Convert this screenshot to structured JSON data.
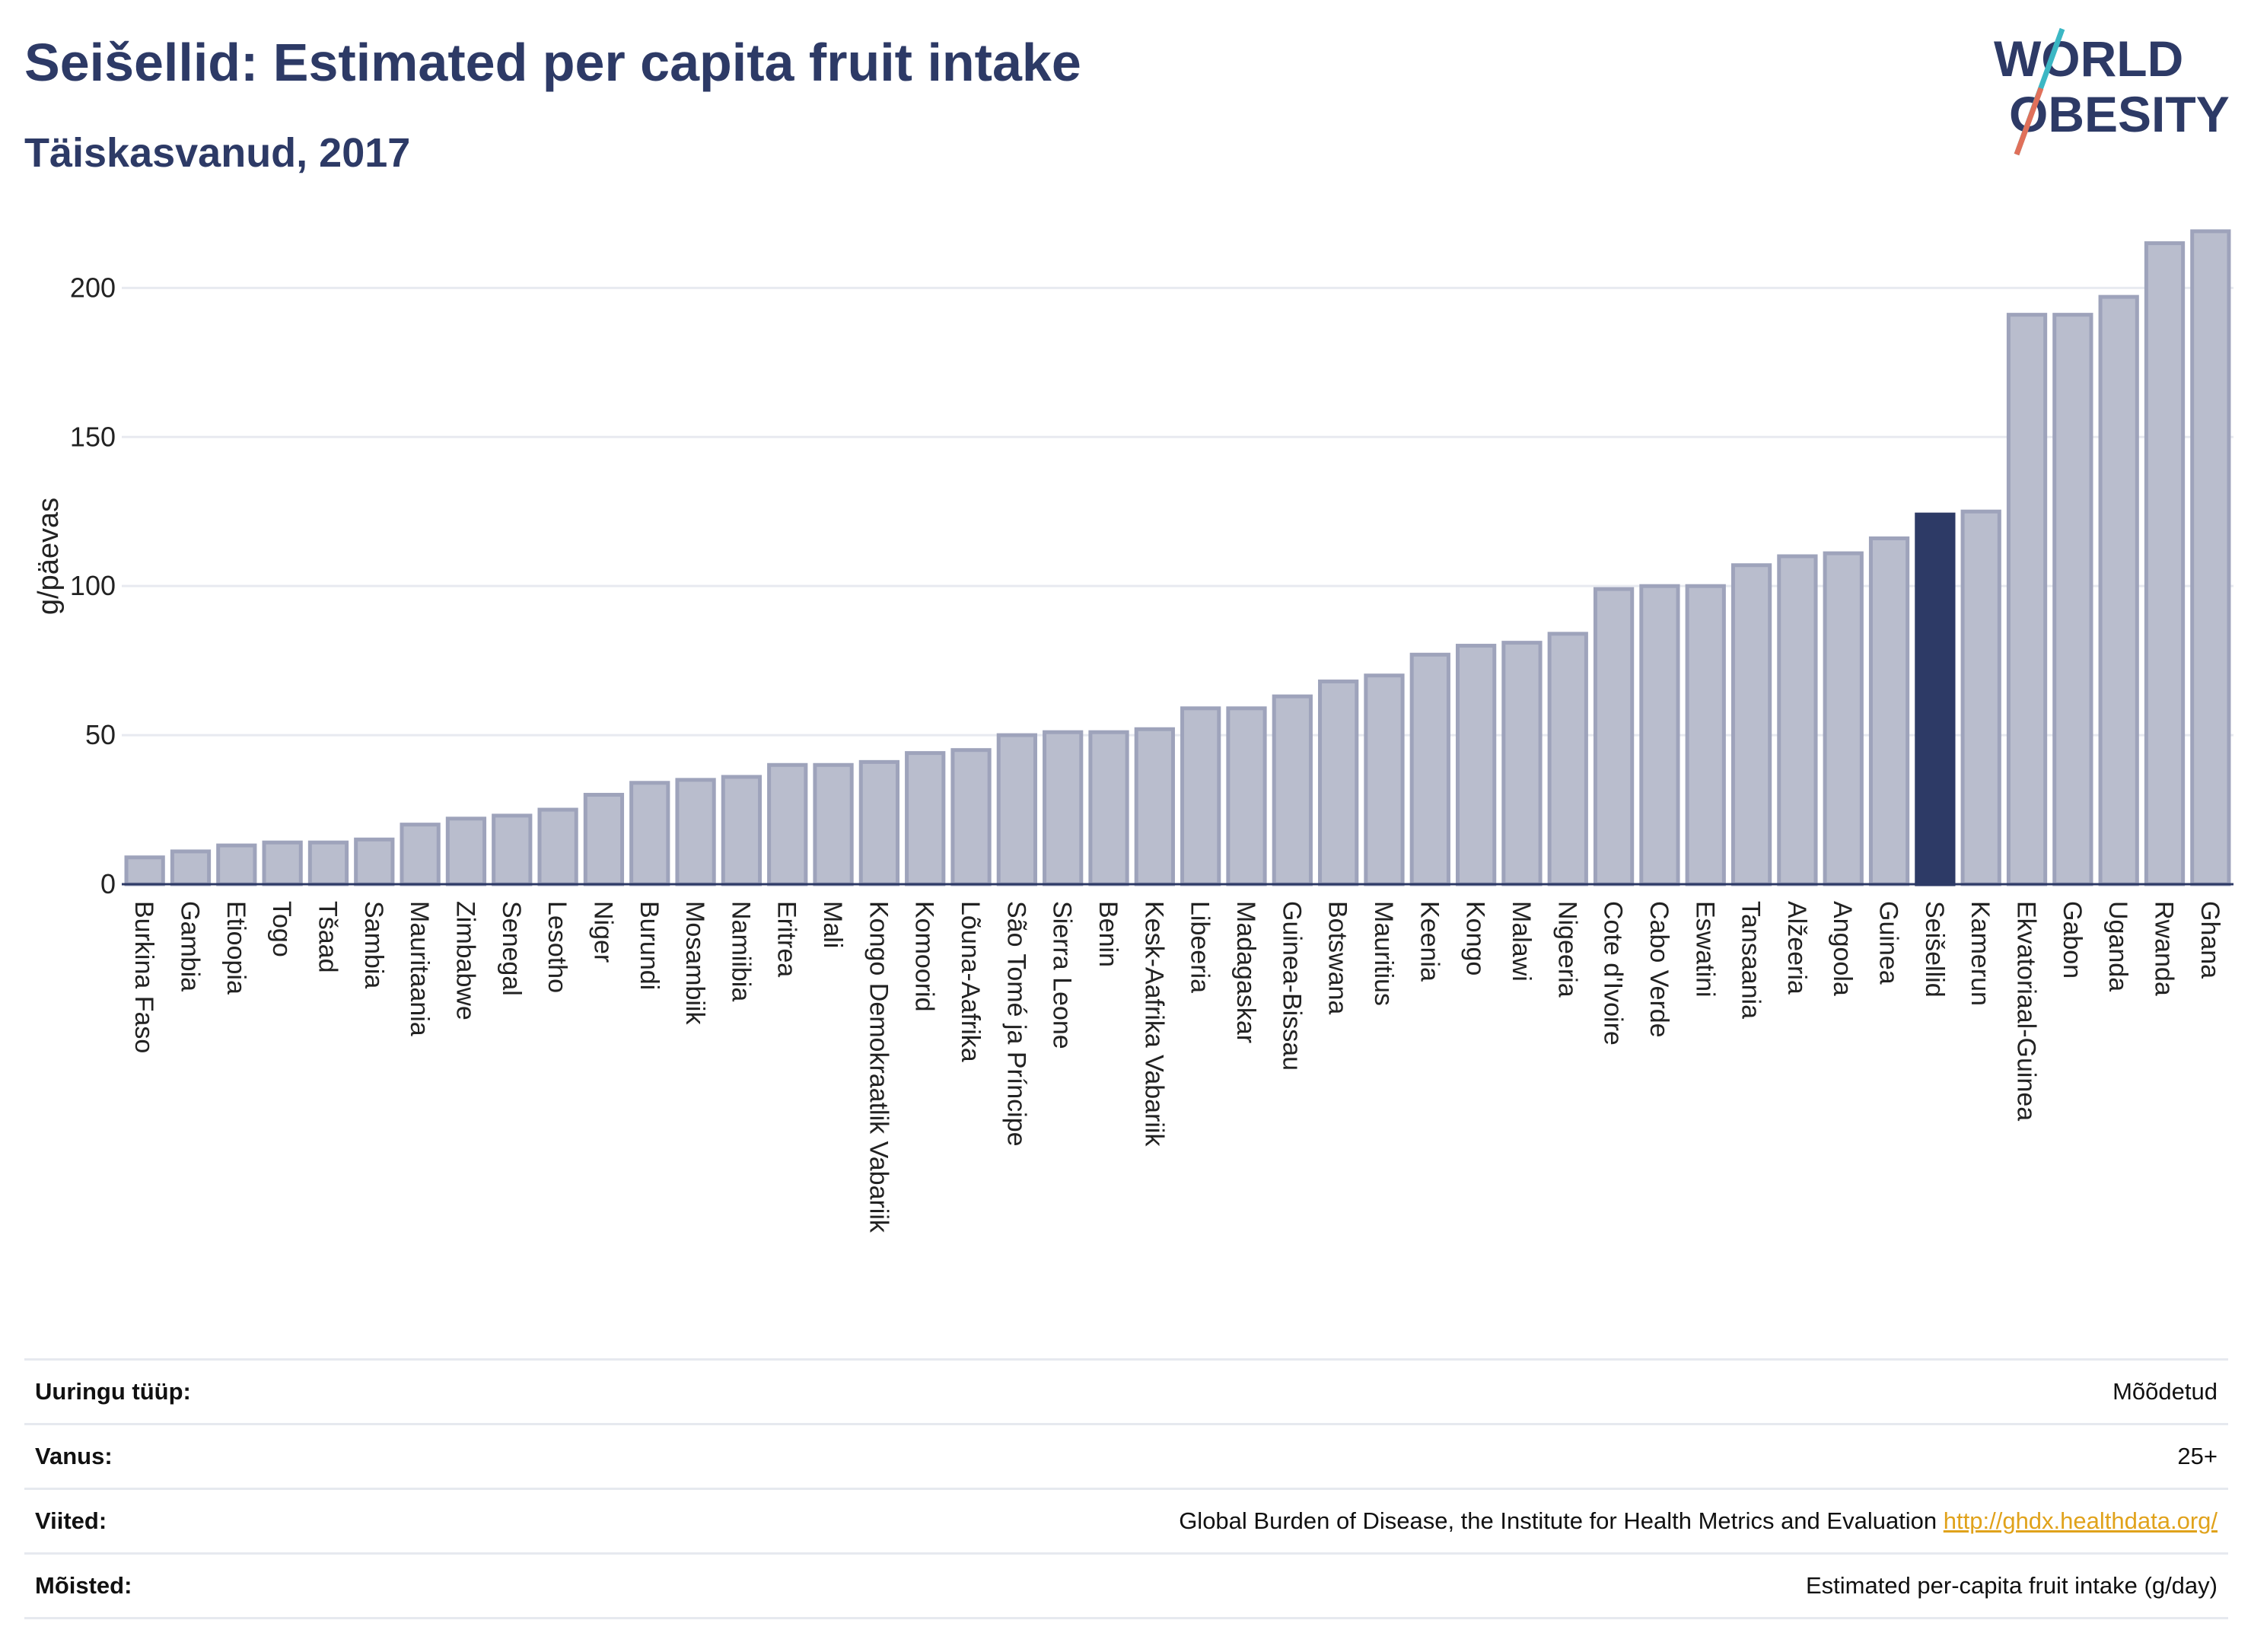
{
  "header": {
    "title": "Seišellid: Estimated per capita fruit intake",
    "subtitle": "Täiskasvanud, 2017",
    "logo_line1": "WORLD",
    "logo_line2": "OBESITY"
  },
  "colors": {
    "bar": "#b9bdcd",
    "bar_stroke": "#9ea3bb",
    "highlight": "#2d3a66",
    "title": "#2d3a66",
    "link": "#e0a21b"
  },
  "chart_data": {
    "type": "bar",
    "title": "Seišellid: Estimated per capita fruit intake",
    "subtitle": "Täiskasvanud, 2017",
    "ylabel": "g/päevas",
    "xlabel": "",
    "ylim": [
      0,
      220
    ],
    "yticks": [
      0,
      50,
      100,
      150,
      200
    ],
    "grid": true,
    "highlight": "Seišellid",
    "categories": [
      "Burkina Faso",
      "Gambia",
      "Etioopia",
      "Togo",
      "Tšaad",
      "Sambia",
      "Mauritaania",
      "Zimbabwe",
      "Senegal",
      "Lesotho",
      "Niger",
      "Burundi",
      "Mosambiik",
      "Namiibia",
      "Eritrea",
      "Mali",
      "Kongo Demokraatlik Vabariik",
      "Komoorid",
      "Lõuna-Aafrika",
      "São Tomé ja Príncipe",
      "Sierra Leone",
      "Benin",
      "Kesk-Aafrika Vabariik",
      "Libeeria",
      "Madagaskar",
      "Guinea-Bissau",
      "Botswana",
      "Mauritius",
      "Keenia",
      "Kongo",
      "Malawi",
      "Nigeeria",
      "Cote d'Ivoire",
      "Cabo Verde",
      "Eswatini",
      "Tansaania",
      "Alžeeria",
      "Angoola",
      "Guinea",
      "Seišellid",
      "Kamerun",
      "Ekvatoriaal-Guinea",
      "Gabon",
      "Uganda",
      "Rwanda",
      "Ghana"
    ],
    "values": [
      9,
      11,
      13,
      14,
      14,
      15,
      20,
      22,
      23,
      25,
      30,
      34,
      35,
      36,
      40,
      40,
      41,
      44,
      45,
      50,
      51,
      51,
      52,
      59,
      59,
      63,
      68,
      70,
      77,
      80,
      81,
      84,
      99,
      100,
      100,
      107,
      110,
      111,
      116,
      124,
      125,
      191,
      191,
      197,
      215,
      219
    ]
  },
  "info": [
    {
      "key": "Uuringu tüüp:",
      "value": "Mõõdetud",
      "link": ""
    },
    {
      "key": "Vanus:",
      "value": "25+",
      "link": ""
    },
    {
      "key": "Viited:",
      "value": "Global Burden of Disease, the Institute for Health Metrics and Evaluation ",
      "link": "http://ghdx.healthdata.org/"
    },
    {
      "key": "Mõisted:",
      "value": "Estimated per-capita fruit intake (g/day)",
      "link": ""
    }
  ]
}
